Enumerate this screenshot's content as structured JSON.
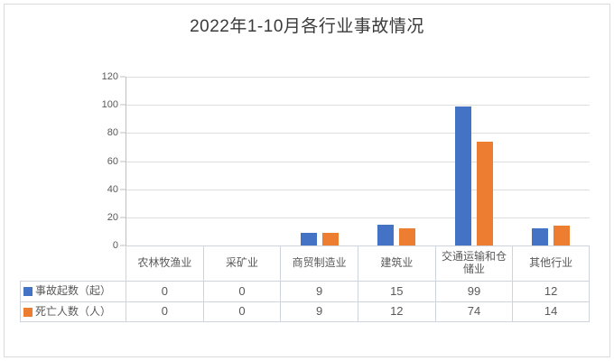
{
  "title": "2022年1-10月各行业事故情况",
  "colors": {
    "series_accidents": "#4472C4",
    "series_deaths": "#ED7D31",
    "gridline": "#DEDEDE",
    "axis_line": "#BFBFBF",
    "table_border": "#CFD3DB",
    "outer_border": "#D9D9D9",
    "text": "#595959"
  },
  "chart_data": {
    "type": "bar",
    "title": "2022年1-10月各行业事故情况",
    "categories": [
      "农林牧渔业",
      "采矿业",
      "商贸制造业",
      "建筑业",
      "交通运输和仓储业",
      "其他行业"
    ],
    "series": [
      {
        "name": "事故起数（起）",
        "color": "#4472C4",
        "values": [
          0,
          0,
          9,
          15,
          99,
          12
        ]
      },
      {
        "name": "死亡人数（人）",
        "color": "#ED7D31",
        "values": [
          0,
          0,
          9,
          12,
          74,
          14
        ]
      }
    ],
    "xlabel": "",
    "ylabel": "",
    "ylim": [
      0,
      120
    ],
    "yticks": [
      0,
      20,
      40,
      60,
      80,
      100,
      120
    ],
    "grid": true,
    "legend_position": "table-left",
    "data_table_shown": true
  }
}
